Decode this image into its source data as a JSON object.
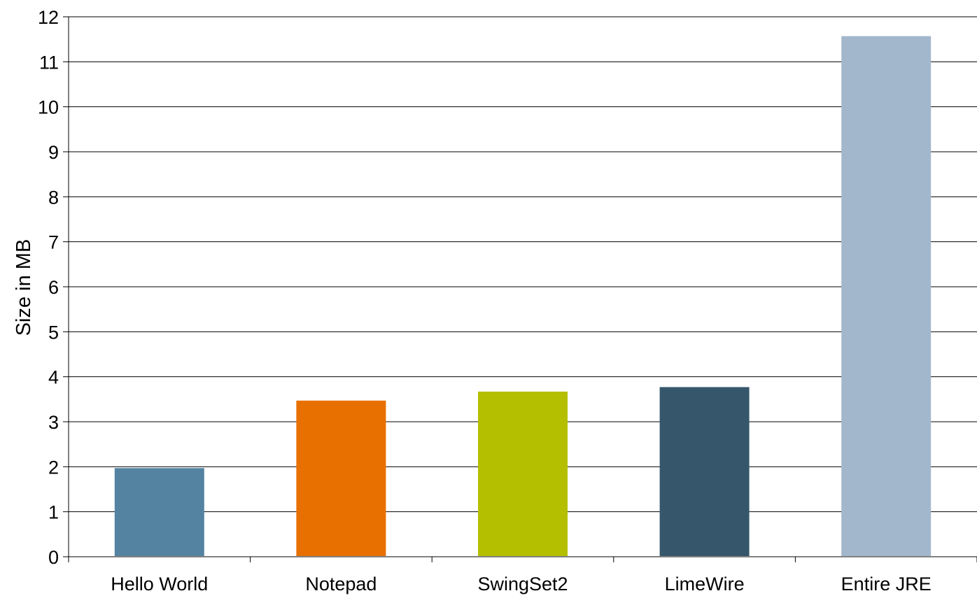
{
  "chart_data": {
    "type": "bar",
    "categories": [
      "Hello World",
      "Notepad",
      "SwingSet2",
      "LimeWire",
      "Entire JRE"
    ],
    "values": [
      1.97,
      3.47,
      3.67,
      3.77,
      11.57
    ],
    "colors": [
      "#5383a1",
      "#e87000",
      "#b4bf00",
      "#36566b",
      "#a3b7cc"
    ],
    "title": "",
    "xlabel": "",
    "ylabel": "Size in MB",
    "ylim": [
      0,
      12
    ],
    "yticks": [
      "0",
      "1",
      "2",
      "3",
      "4",
      "5",
      "6",
      "7",
      "8",
      "9",
      "10",
      "11",
      "12"
    ],
    "grid": true,
    "legend": "none"
  }
}
